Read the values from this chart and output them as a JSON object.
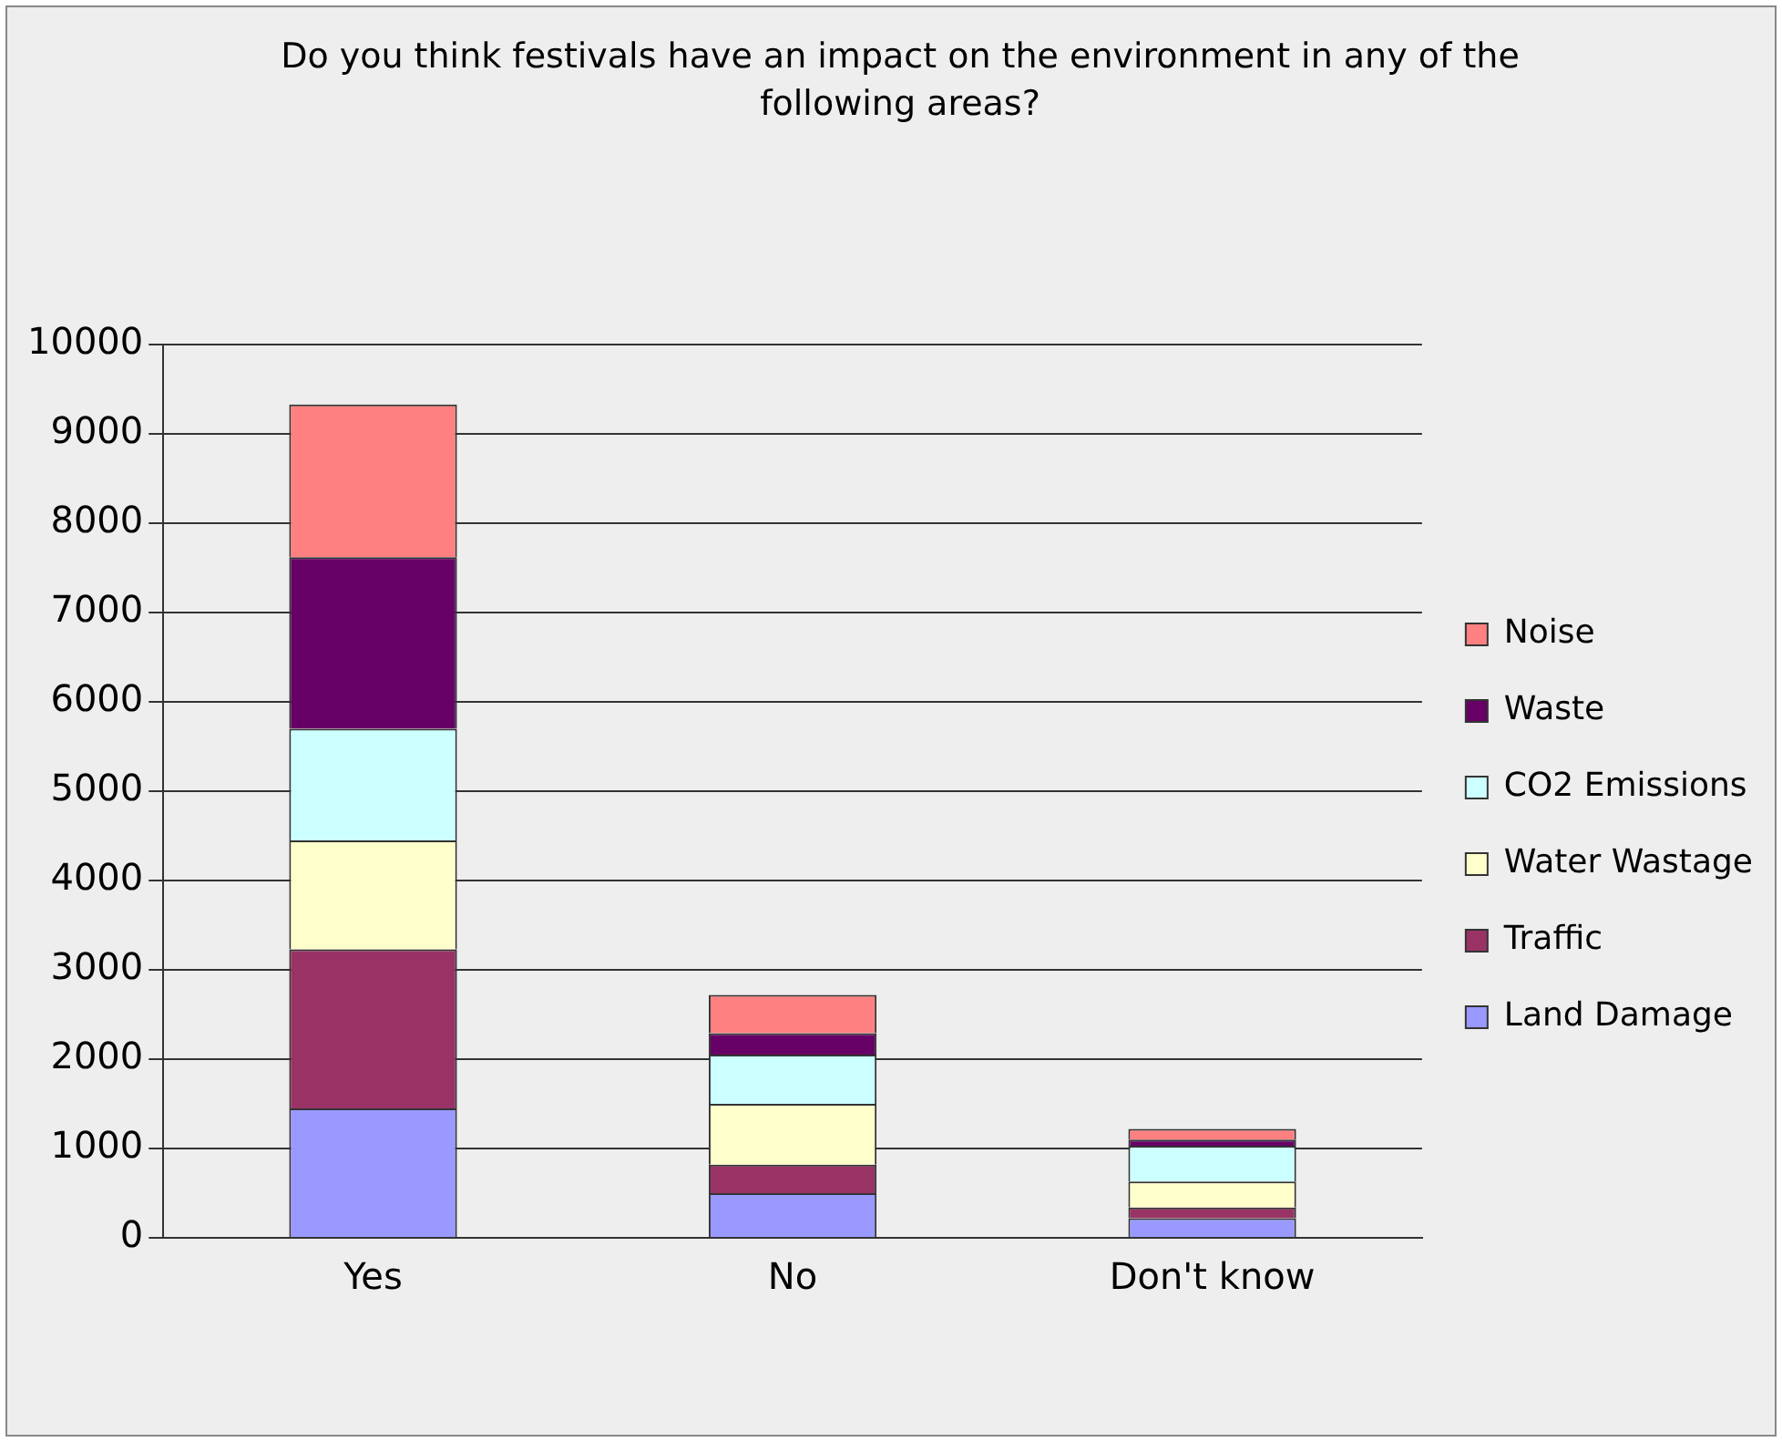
{
  "chart_data": {
    "type": "bar",
    "title": "Do you think festivals have an impact on the environment in any of the following areas?",
    "categories": [
      "Yes",
      "No",
      "Don't know"
    ],
    "stacked": true,
    "ylim": [
      0,
      10000
    ],
    "yticks": [
      0,
      1000,
      2000,
      3000,
      4000,
      5000,
      6000,
      7000,
      8000,
      9000,
      10000
    ],
    "grid": "y",
    "legend": "right",
    "series": [
      {
        "name": "Land Damage",
        "color": "#9999ff",
        "values": [
          1450,
          500,
          220
        ]
      },
      {
        "name": "Traffic",
        "color": "#993366",
        "values": [
          1780,
          320,
          120
        ]
      },
      {
        "name": "Water Wastage",
        "color": "#ffffcc",
        "values": [
          1220,
          680,
          290
        ]
      },
      {
        "name": "CO2 Emissions",
        "color": "#ccffff",
        "values": [
          1250,
          550,
          400
        ]
      },
      {
        "name": "Waste",
        "color": "#660066",
        "values": [
          1920,
          240,
          70
        ]
      },
      {
        "name": "Noise",
        "color": "#ff8080",
        "values": [
          1710,
          430,
          120
        ]
      }
    ]
  }
}
